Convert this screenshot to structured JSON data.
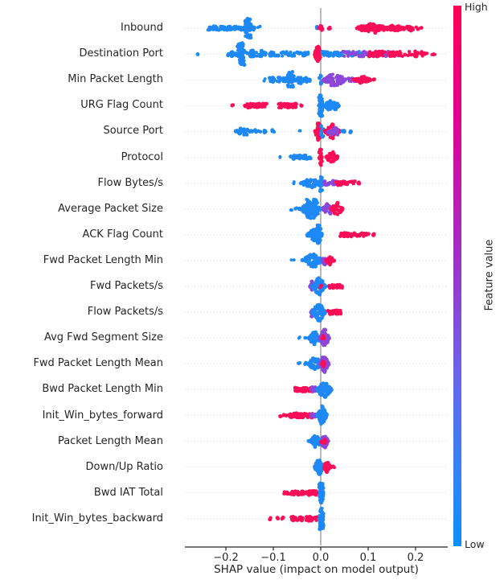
{
  "chart_data": {
    "type": "scatter",
    "subtype": "shap-beeswarm-summary",
    "title": "",
    "xlabel": "SHAP value (impact on model output)",
    "ylabel": "",
    "x_ticks": [
      -0.2,
      -0.1,
      0.0,
      0.1,
      0.2
    ],
    "x_tick_labels": [
      "−0.2",
      "−0.1",
      "0.0",
      "0.1",
      "0.2"
    ],
    "xlim": [
      -0.285,
      0.268
    ],
    "zero_reference_line": 0.0,
    "grid": "dotted-row-lines",
    "palette": {
      "b": "#1e88f5",
      "r": "#fb0d57",
      "p": "#8b48d8"
    },
    "colorbar": {
      "label": "Feature value",
      "high_label": "High",
      "low_label": "Low",
      "gradient_top": "#ff0051",
      "gradient_mid": "#a32cc4",
      "gradient_bottom": "#0a8efb"
    },
    "features": [
      {
        "name": "Inbound",
        "clusters": [
          [
            -0.238,
            -0.128,
            "b",
            "line",
            2.2,
            85
          ],
          [
            -0.16,
            -0.147,
            "b",
            "bar",
            13,
            48
          ],
          [
            -0.01,
            -0.005,
            "b",
            "dot",
            1.5,
            2
          ],
          [
            -0.004,
            0.004,
            "r",
            "violin",
            5,
            12
          ],
          [
            0.015,
            0.02,
            "r",
            "dot",
            1.5,
            3
          ],
          [
            0.075,
            0.196,
            "r",
            "line",
            3,
            85
          ],
          [
            0.085,
            0.135,
            "r",
            "violin",
            6.5,
            60
          ],
          [
            0.13,
            0.175,
            "r",
            "violin",
            4,
            30
          ],
          [
            0.2,
            0.214,
            "r",
            "dot",
            1.5,
            4
          ]
        ]
      },
      {
        "name": "Destination Port",
        "clusters": [
          [
            -0.261,
            -0.255,
            "b",
            "dot",
            1.5,
            2
          ],
          [
            -0.197,
            -0.024,
            "b",
            "line",
            2.6,
            100
          ],
          [
            -0.176,
            -0.161,
            "b",
            "bar",
            14,
            52
          ],
          [
            -0.15,
            -0.139,
            "b",
            "violin",
            7,
            18
          ],
          [
            -0.128,
            -0.119,
            "b",
            "violin",
            5,
            10
          ],
          [
            -0.013,
            0.001,
            "r",
            "violin",
            11,
            52
          ],
          [
            0.002,
            0.105,
            "b",
            "line",
            2.8,
            60
          ],
          [
            0.045,
            0.165,
            "p",
            "line",
            3.2,
            60
          ],
          [
            0.1,
            0.226,
            "r",
            "line",
            3.2,
            70
          ],
          [
            0.231,
            0.242,
            "r",
            "dot",
            1.5,
            3
          ]
        ]
      },
      {
        "name": "Min Packet Length",
        "clusters": [
          [
            -0.122,
            -0.117,
            "b",
            "dot",
            1.5,
            2
          ],
          [
            -0.108,
            -0.018,
            "b",
            "line",
            2.6,
            65
          ],
          [
            -0.07,
            -0.057,
            "b",
            "bar",
            10,
            36
          ],
          [
            -0.049,
            -0.039,
            "b",
            "violin",
            7,
            16
          ],
          [
            -0.004,
            0.003,
            "b",
            "bar",
            6,
            10
          ],
          [
            0.005,
            0.053,
            "p",
            "violin",
            8,
            85
          ],
          [
            0.058,
            0.076,
            "p",
            "line",
            2.6,
            10
          ],
          [
            0.068,
            0.106,
            "r",
            "violin",
            4.5,
            45
          ],
          [
            0.11,
            0.116,
            "r",
            "dot",
            1.5,
            2
          ]
        ]
      },
      {
        "name": "URG Flag Count",
        "clusters": [
          [
            -0.188,
            -0.183,
            "r",
            "dot",
            1.5,
            2
          ],
          [
            -0.161,
            -0.112,
            "r",
            "line",
            2.6,
            45
          ],
          [
            -0.089,
            -0.051,
            "r",
            "line",
            2.6,
            40
          ],
          [
            -0.046,
            -0.04,
            "r",
            "dot",
            1.5,
            2
          ],
          [
            -0.004,
            0.004,
            "b",
            "bar",
            13,
            46
          ],
          [
            0.007,
            0.039,
            "b",
            "violin",
            8,
            52
          ]
        ]
      },
      {
        "name": "Source Port",
        "clusters": [
          [
            -0.181,
            -0.144,
            "b",
            "violin",
            5.5,
            36
          ],
          [
            -0.139,
            -0.127,
            "b",
            "line",
            2.2,
            7
          ],
          [
            -0.121,
            -0.111,
            "b",
            "line",
            2,
            5
          ],
          [
            -0.103,
            -0.096,
            "b",
            "line",
            2,
            4
          ],
          [
            -0.049,
            -0.043,
            "b",
            "dot",
            1.5,
            2
          ],
          [
            -0.012,
            0.002,
            "r",
            "violin",
            12,
            60
          ],
          [
            0.0,
            0.006,
            "b",
            "bar",
            8,
            12
          ],
          [
            0.009,
            0.039,
            "r",
            "violin",
            9,
            52
          ],
          [
            0.013,
            0.042,
            "p",
            "line",
            4.5,
            18
          ],
          [
            0.044,
            0.053,
            "b",
            "line",
            2,
            5
          ],
          [
            0.062,
            0.068,
            "b",
            "dot",
            1.5,
            2
          ]
        ]
      },
      {
        "name": "Protocol",
        "clusters": [
          [
            -0.089,
            -0.083,
            "b",
            "dot",
            1.5,
            2
          ],
          [
            -0.068,
            -0.021,
            "b",
            "line",
            2.3,
            40
          ],
          [
            -0.003,
            0.003,
            "r",
            "bar",
            10,
            28
          ],
          [
            0.011,
            0.037,
            "r",
            "violin",
            7,
            46
          ]
        ]
      },
      {
        "name": "Flow Bytes/s",
        "clusters": [
          [
            -0.059,
            -0.053,
            "b",
            "dot",
            1.5,
            2
          ],
          [
            -0.043,
            0.001,
            "b",
            "violin",
            6,
            55
          ],
          [
            -0.002,
            0.004,
            "b",
            "bar",
            10,
            16
          ],
          [
            0.006,
            0.036,
            "p",
            "line",
            2.8,
            28
          ],
          [
            0.03,
            0.073,
            "r",
            "line",
            2.4,
            35
          ],
          [
            0.078,
            0.089,
            "r",
            "dot",
            1.5,
            3
          ]
        ]
      },
      {
        "name": "Average Packet Size",
        "clusters": [
          [
            -0.067,
            -0.061,
            "b",
            "dot",
            1.5,
            2
          ],
          [
            -0.056,
            -0.05,
            "b",
            "dot",
            1.5,
            2
          ],
          [
            -0.046,
            0.004,
            "b",
            "violin",
            8,
            85
          ],
          [
            -0.031,
            -0.021,
            "b",
            "bar",
            12,
            22
          ],
          [
            -0.015,
            -0.005,
            "b",
            "bar",
            12,
            22
          ],
          [
            0.005,
            0.027,
            "p",
            "violin",
            8,
            40
          ],
          [
            0.022,
            0.047,
            "r",
            "violin",
            8,
            46
          ]
        ]
      },
      {
        "name": "ACK Flag Count",
        "clusters": [
          [
            -0.029,
            0.004,
            "b",
            "violin",
            9,
            70
          ],
          [
            -0.009,
            0.0,
            "b",
            "bar",
            13,
            22
          ],
          [
            0.04,
            0.101,
            "r",
            "line",
            2.4,
            50
          ],
          [
            0.108,
            0.114,
            "r",
            "dot",
            1.5,
            2
          ]
        ]
      },
      {
        "name": "Fwd Packet Length Min",
        "clusters": [
          [
            -0.062,
            -0.056,
            "b",
            "dot",
            1.5,
            2
          ],
          [
            -0.039,
            0.005,
            "b",
            "violin",
            9,
            70
          ],
          [
            0.003,
            0.015,
            "p",
            "violin",
            6,
            18
          ],
          [
            0.01,
            0.029,
            "r",
            "violin",
            5,
            36
          ]
        ]
      },
      {
        "name": "Fwd Packets/s",
        "clusters": [
          [
            -0.023,
            -0.014,
            "p",
            "violin",
            6,
            12
          ],
          [
            -0.018,
            0.01,
            "b",
            "violin",
            11,
            82
          ],
          [
            -0.002,
            0.002,
            "r",
            "dot",
            2,
            3
          ],
          [
            0.014,
            0.047,
            "r",
            "line",
            2.4,
            32
          ]
        ]
      },
      {
        "name": "Flow Packets/s",
        "clusters": [
          [
            -0.023,
            -0.014,
            "p",
            "violin",
            6,
            12
          ],
          [
            -0.018,
            0.01,
            "b",
            "violin",
            12,
            82
          ],
          [
            0.014,
            0.043,
            "r",
            "line",
            2.4,
            30
          ]
        ]
      },
      {
        "name": "Avg Fwd Segment Size",
        "clusters": [
          [
            -0.047,
            -0.041,
            "b",
            "dot",
            1.5,
            2
          ],
          [
            -0.036,
            -0.03,
            "b",
            "dot",
            1.5,
            2
          ],
          [
            -0.026,
            0.001,
            "b",
            "violin",
            8,
            50
          ],
          [
            -0.003,
            0.018,
            "p",
            "violin",
            11,
            68
          ],
          [
            0.003,
            0.01,
            "r",
            "violin",
            3.5,
            8
          ]
        ]
      },
      {
        "name": "Fwd Packet Length Mean",
        "clusters": [
          [
            -0.048,
            -0.042,
            "b",
            "dot",
            1.5,
            2
          ],
          [
            -0.037,
            -0.031,
            "b",
            "dot",
            1.5,
            2
          ],
          [
            -0.026,
            0.001,
            "b",
            "violin",
            9,
            50
          ],
          [
            -0.002,
            0.017,
            "p",
            "violin",
            11,
            68
          ],
          [
            0.002,
            0.009,
            "r",
            "violin",
            4,
            8
          ]
        ]
      },
      {
        "name": "Bwd Packet Length Min",
        "clusters": [
          [
            -0.054,
            -0.016,
            "r",
            "line",
            2.7,
            55
          ],
          [
            -0.021,
            -0.008,
            "p",
            "line",
            3.2,
            14
          ],
          [
            -0.008,
            0.023,
            "b",
            "violin",
            11,
            78
          ]
        ]
      },
      {
        "name": "Init_Win_bytes_forward",
        "clusters": [
          [
            -0.088,
            -0.082,
            "r",
            "dot",
            1.5,
            2
          ],
          [
            -0.078,
            -0.072,
            "r",
            "dot",
            1.5,
            2
          ],
          [
            -0.068,
            -0.016,
            "r",
            "line",
            2.7,
            65
          ],
          [
            -0.021,
            -0.01,
            "p",
            "line",
            2.8,
            10
          ],
          [
            -0.008,
            0.013,
            "b",
            "violin",
            12,
            78
          ]
        ]
      },
      {
        "name": "Packet Length Mean",
        "clusters": [
          [
            -0.03,
            -0.024,
            "b",
            "dot",
            1.5,
            2
          ],
          [
            -0.022,
            0.002,
            "b",
            "violin",
            8,
            46
          ],
          [
            0.0,
            0.016,
            "p",
            "violin",
            9,
            46
          ],
          [
            0.0,
            0.011,
            "r",
            "violin",
            5,
            14
          ]
        ]
      },
      {
        "name": "Down/Up Ratio",
        "clusters": [
          [
            -0.013,
            0.006,
            "b",
            "violin",
            10,
            66
          ],
          [
            0.006,
            0.021,
            "r",
            "violin",
            7,
            36
          ],
          [
            0.024,
            0.031,
            "r",
            "dot",
            1.5,
            3
          ]
        ]
      },
      {
        "name": "Bwd IAT Total",
        "clusters": [
          [
            -0.078,
            -0.036,
            "r",
            "line",
            2.4,
            40
          ],
          [
            -0.034,
            -0.006,
            "r",
            "line",
            2.8,
            32
          ],
          [
            -0.003,
            0.006,
            "b",
            "bar",
            13,
            56
          ]
        ]
      },
      {
        "name": "Init_Win_bytes_backward",
        "clusters": [
          [
            -0.109,
            -0.103,
            "r",
            "dot",
            1.5,
            2
          ],
          [
            -0.095,
            -0.089,
            "r",
            "dot",
            1.5,
            2
          ],
          [
            -0.083,
            -0.077,
            "r",
            "dot",
            1.5,
            2
          ],
          [
            -0.062,
            -0.037,
            "r",
            "line",
            2.4,
            26
          ],
          [
            -0.034,
            -0.007,
            "r",
            "line",
            2.8,
            30
          ],
          [
            -0.003,
            0.006,
            "b",
            "bar",
            13,
            56
          ]
        ]
      }
    ]
  }
}
